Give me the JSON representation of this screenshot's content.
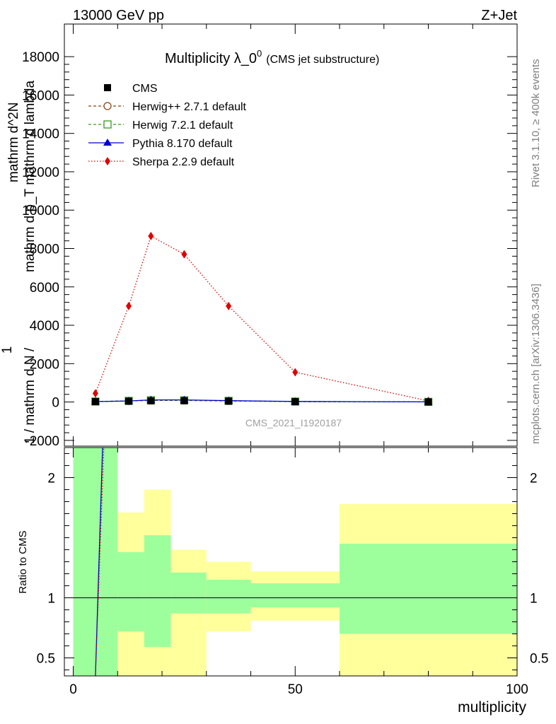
{
  "header": {
    "energy": "13000 GeV pp",
    "process": "Z+Jet"
  },
  "side": {
    "rivet": "Rivet 3.1.10, ≥ 400k events",
    "site": "mcplots.cern.ch [arXiv:1306.3436]"
  },
  "colors": {
    "cms": "#000000",
    "herwigpp": "#8b4513",
    "herwig7": "#3a9b1a",
    "pythia": "#0000cc",
    "sherpa": "#e00000",
    "band_green": "#9cff9c",
    "band_yellow": "#ffff9c"
  },
  "chart_data": [
    {
      "type": "line",
      "title": "Multiplicity λ_0^0",
      "title_base": "Multiplicity λ_0",
      "title_sup": "0",
      "subtitle": "(CMS jet substructure)",
      "watermark": "CMS_2021_I1920187",
      "ylabel": "1 / mathrm d N / mathrm d p_T mathrm d lambda mathrm d^2N",
      "ylabel_lines": [
        "mathrm d^2N",
        "mathrm d p_T mathrm d lambda",
        "1 / mathrm d N /"
      ],
      "xlim": [
        -2,
        100
      ],
      "ylim": [
        -2300,
        19700
      ],
      "yticks": [
        -2000,
        0,
        2000,
        4000,
        6000,
        8000,
        10000,
        12000,
        14000,
        16000,
        18000
      ],
      "x": [
        5,
        12.5,
        17.5,
        25,
        35,
        50,
        80
      ],
      "series": [
        {
          "name": "CMS",
          "values": [
            20,
            40,
            60,
            65,
            45,
            18,
            5
          ]
        },
        {
          "name": "Herwig++ 2.7.1 default",
          "values": [
            25,
            55,
            85,
            80,
            55,
            22,
            6
          ]
        },
        {
          "name": "Herwig 7.2.1 default",
          "values": [
            25,
            60,
            95,
            90,
            60,
            24,
            6
          ]
        },
        {
          "name": "Pythia 8.170 default",
          "values": [
            20,
            55,
            110,
            110,
            70,
            28,
            6
          ]
        },
        {
          "name": "Sherpa 2.2.9 default",
          "values": [
            450,
            5000,
            8650,
            7700,
            5000,
            1550,
            60
          ]
        }
      ]
    },
    {
      "type": "area",
      "ylabel": "Ratio to CMS",
      "xlabel": "multiplicity",
      "xlim": [
        -2,
        100
      ],
      "ylim": [
        0.35,
        2.25
      ],
      "yticks": [
        0.5,
        1,
        2
      ],
      "xticks": [
        0,
        50,
        100
      ],
      "bins": [
        {
          "lo": 0,
          "hi": 10,
          "green": [
            0.35,
            2.25
          ],
          "yellow": [
            0.35,
            2.25
          ]
        },
        {
          "lo": 10,
          "hi": 16,
          "green": [
            0.72,
            1.38
          ],
          "yellow": [
            0.35,
            1.71
          ]
        },
        {
          "lo": 16,
          "hi": 22,
          "green": [
            0.59,
            1.52
          ],
          "yellow": [
            0.35,
            1.9
          ]
        },
        {
          "lo": 22,
          "hi": 30,
          "green": [
            0.87,
            1.21
          ],
          "yellow": [
            0.35,
            1.4
          ]
        },
        {
          "lo": 30,
          "hi": 40,
          "green": [
            0.87,
            1.15
          ],
          "yellow": [
            0.72,
            1.3
          ]
        },
        {
          "lo": 40,
          "hi": 60,
          "green": [
            0.92,
            1.12
          ],
          "yellow": [
            0.81,
            1.22
          ]
        },
        {
          "lo": 60,
          "hi": 100,
          "green": [
            0.7,
            1.45
          ],
          "yellow": [
            0.35,
            1.78
          ]
        }
      ],
      "ratio_lines": [
        {
          "name": "Pythia 8.170 default",
          "points": [
            [
              5,
              0.35
            ],
            [
              6.6,
              2.25
            ]
          ]
        },
        {
          "name": "Sherpa 2.2.9 default",
          "points": [
            [
              5,
              0.35
            ],
            [
              6.9,
              2.25
            ]
          ]
        }
      ]
    }
  ]
}
